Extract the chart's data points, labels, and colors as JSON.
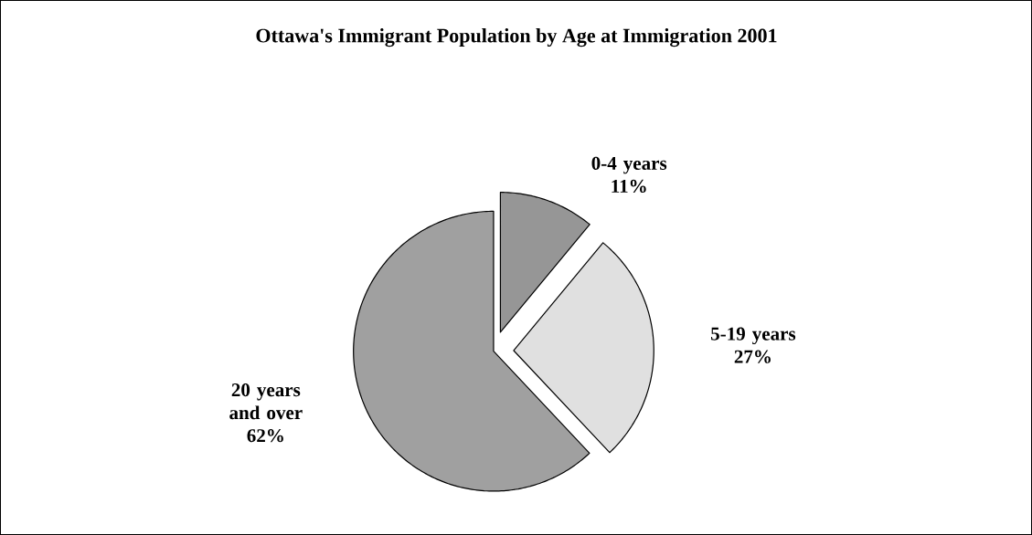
{
  "chart_data": {
    "type": "pie",
    "title": "Ottawa's Immigrant Population by Age at Immigration 2001",
    "categories": [
      "0-4 years",
      "5-19 years",
      "20 years and over"
    ],
    "values": [
      11,
      27,
      62
    ],
    "colors": [
      "#969696",
      "#e0e0e0",
      "#a0a0a0"
    ],
    "value_labels": [
      "11%",
      "27%",
      "62%"
    ]
  }
}
